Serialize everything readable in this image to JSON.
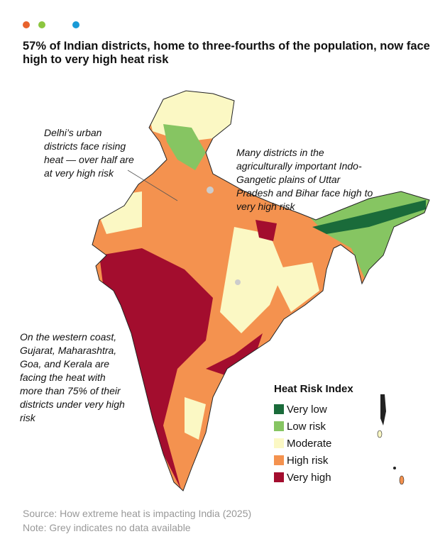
{
  "header": {
    "dots": [
      "#e8622c",
      "#8cc63f",
      "#1a9ad6"
    ],
    "title": "57% of Indian districts, home to three-fourths of the population, now face high to very high heat risk"
  },
  "annotations": {
    "delhi": "Delhi’s urban districts face rising heat — over half are at very high risk",
    "gangetic": "Many districts in the agriculturally important Indo-Gangetic plains of Uttar Pradesh and Bihar face high to very high risk",
    "western": "On the western coast, Gujarat, Maharashtra, Goa, and Kerala are facing the heat with more than 75% of their districts under very high risk"
  },
  "legend": {
    "title": "Heat Risk Index",
    "items": [
      {
        "label": "Very low",
        "color": "#1a6b3a"
      },
      {
        "label": "Low risk",
        "color": "#86c562"
      },
      {
        "label": "Moderate",
        "color": "#fbf8c4"
      },
      {
        "label": "High risk",
        "color": "#f4924f"
      },
      {
        "label": "Very high",
        "color": "#a30d2e"
      }
    ]
  },
  "footer": {
    "source": "Source: How extreme heat is impacting India (2025)",
    "note": "Note: Grey indicates no data available"
  }
}
